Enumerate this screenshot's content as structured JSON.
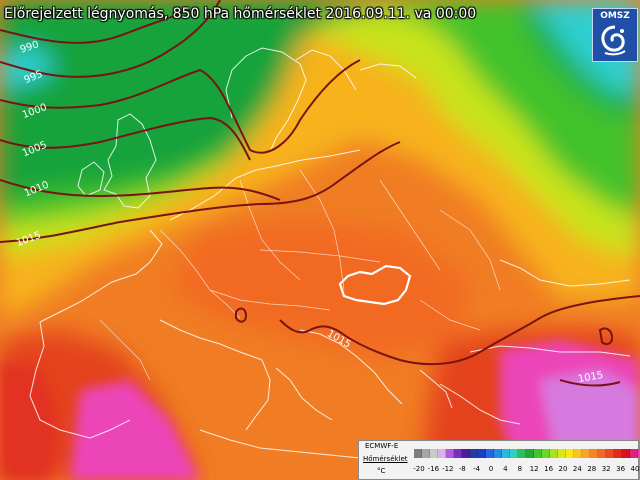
{
  "title": "Előrejelzett légnyomás, 850 hPa hőmérséklet 2016.09.11. va 00:00",
  "logo": {
    "text": "OMSZ"
  },
  "legend": {
    "model": "ECMWF-E",
    "parameter": "Hőmérséklet",
    "unit": "°C",
    "tick_labels": [
      "-20",
      "-16",
      "-12",
      "-8",
      "-4",
      "0",
      "4",
      "8",
      "12",
      "16",
      "20",
      "24",
      "28",
      "32",
      "36",
      "40"
    ],
    "colors": [
      "#7d7d7d",
      "#a6a6a6",
      "#c9c9c9",
      "#d9b3e6",
      "#b35adc",
      "#7a2dbf",
      "#4b1c9c",
      "#283a9e",
      "#1b3fc4",
      "#2b63e6",
      "#1f8fe0",
      "#25b8e0",
      "#30d0c0",
      "#2fbe5a",
      "#22a83a",
      "#3ec62c",
      "#6cd624",
      "#a8e21c",
      "#d8ea14",
      "#f8e618",
      "#f8c420",
      "#f8a428",
      "#f48628",
      "#ef6a28",
      "#e84a22",
      "#e02a1a",
      "#d81020",
      "#e0207a",
      "#ec3fb4",
      "#f05ad4",
      "#e27ee2",
      "#cf9ee6",
      "#b2b7ea",
      "#9a8fd4",
      "#7a5ab8"
    ]
  },
  "isobar_labels": [
    "990",
    "995",
    "1000",
    "1005",
    "1010",
    "1015",
    "1015",
    "1015"
  ]
}
